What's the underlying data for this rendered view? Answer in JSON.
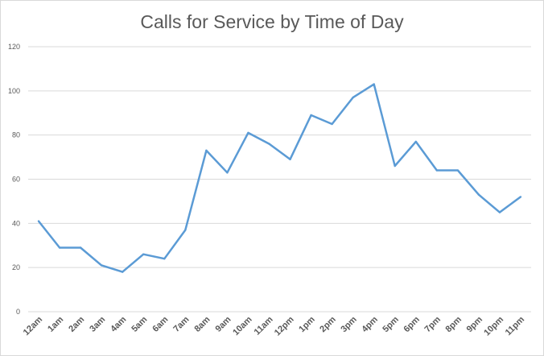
{
  "chart_data": {
    "type": "line",
    "title": "Calls for Service by Time of Day",
    "xlabel": "",
    "ylabel": "",
    "categories": [
      "12am",
      "1am",
      "2am",
      "3am",
      "4am",
      "5am",
      "6am",
      "7am",
      "8am",
      "9am",
      "10am",
      "11am",
      "12pm",
      "1pm",
      "2pm",
      "3pm",
      "4pm",
      "5pm",
      "6pm",
      "7pm",
      "8pm",
      "9pm",
      "10pm",
      "11pm"
    ],
    "series": [
      {
        "values": [
          41,
          29,
          29,
          21,
          18,
          26,
          24,
          37,
          73,
          63,
          81,
          76,
          69,
          89,
          85,
          97,
          103,
          66,
          77,
          64,
          64,
          53,
          45,
          52
        ],
        "color": "#5b9bd5"
      }
    ],
    "ylim": [
      0,
      120
    ],
    "yticks": [
      0,
      20,
      40,
      60,
      80,
      100,
      120
    ],
    "grid": true,
    "legend": "none"
  }
}
